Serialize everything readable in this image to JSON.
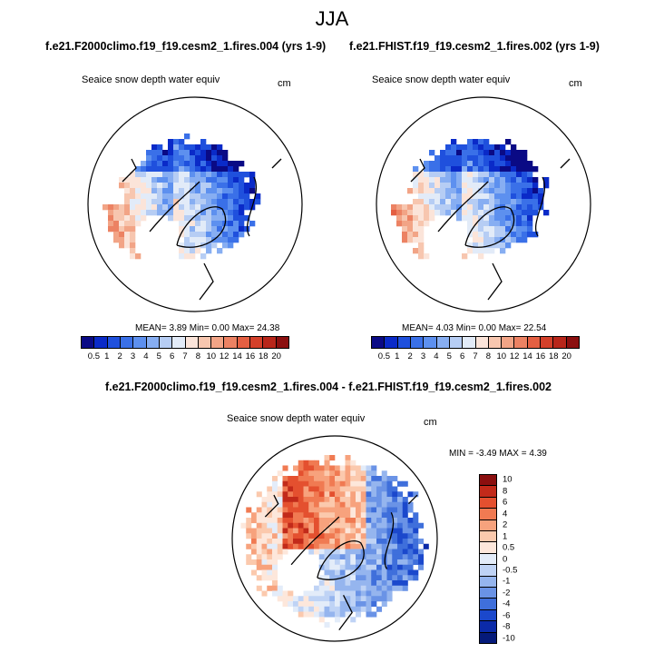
{
  "title": "JJA",
  "colors": {
    "abs_scale": [
      "#0a0a85",
      "#0a2ac8",
      "#1f50dd",
      "#3a70e8",
      "#5d90ef",
      "#87aef2",
      "#b6cdf4",
      "#e2ebf8",
      "#fbe4d9",
      "#f7c6af",
      "#f2a486",
      "#ec8263",
      "#e45f42",
      "#d4402a",
      "#b8261a",
      "#8b0f0f"
    ],
    "diff_scale": [
      "#8b0f0f",
      "#c22a1a",
      "#e4502f",
      "#f07a52",
      "#f7a27d",
      "#fbc9ad",
      "#fde7db",
      "#e3ecf9",
      "#bfd3f5",
      "#95b5ee",
      "#6a93e6",
      "#3f6fdb",
      "#1b48cc",
      "#0b2aa8",
      "#051a7a"
    ]
  },
  "chart_data": [
    {
      "type": "heatmap",
      "panel": "left",
      "case": "f.e21.F2000climo.f19_f19.cesm2_1.fires.004 (yrs 1-9)",
      "variable": "Seaice snow depth water equiv",
      "units": "cm",
      "stats": {
        "mean": 3.89,
        "min": 0.0,
        "max": 24.38
      },
      "stats_text": "MEAN=  3.89  Min=  0.00  Max= 24.38",
      "levels": [
        "0.5",
        "1",
        "2",
        "3",
        "4",
        "5",
        "6",
        "7",
        "8",
        "10",
        "12",
        "14",
        "16",
        "18",
        "20"
      ]
    },
    {
      "type": "heatmap",
      "panel": "right",
      "case": "f.e21.FHIST.f19_f19.cesm2_1.fires.002 (yrs 1-9)",
      "variable": "Seaice snow depth water equiv",
      "units": "cm",
      "stats": {
        "mean": 4.03,
        "min": 0.0,
        "max": 22.54
      },
      "stats_text": "MEAN=  4.03  Min=  0.00  Max= 22.54",
      "levels": [
        "0.5",
        "1",
        "2",
        "3",
        "4",
        "5",
        "6",
        "7",
        "8",
        "10",
        "12",
        "14",
        "16",
        "18",
        "20"
      ]
    },
    {
      "type": "heatmap",
      "panel": "difference",
      "case": "f.e21.F2000climo.f19_f19.cesm2_1.fires.004 - f.e21.FHIST.f19_f19.cesm2_1.fires.002",
      "variable": "Seaice snow depth water equiv",
      "units": "cm",
      "stats": {
        "min": -3.49,
        "max": 4.39
      },
      "stats_text": "MIN =  -3.49 MAX =  4.39",
      "levels": [
        "10",
        "8",
        "6",
        "4",
        "2",
        "1",
        "0.5",
        "0",
        "-0.5",
        "-1",
        "-2",
        "-4",
        "-6",
        "-8",
        "-10"
      ]
    }
  ]
}
